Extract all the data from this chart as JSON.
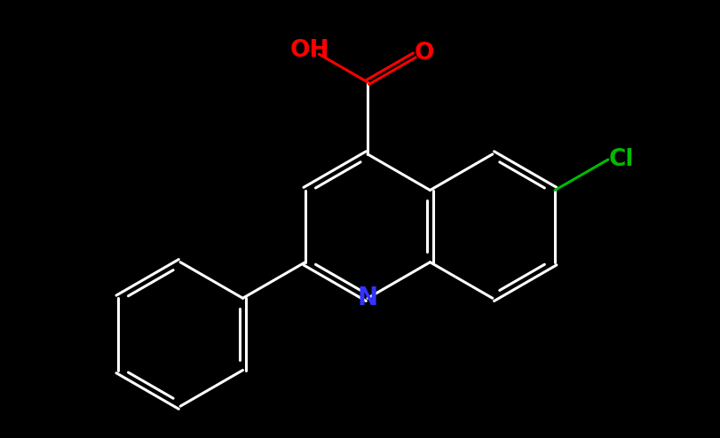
{
  "background": "#000000",
  "bond_color": "#ffffff",
  "N_color": "#3333ff",
  "O_color": "#ff0000",
  "Cl_color": "#00bb00",
  "bond_width": 2.2,
  "font_size_atom": 19,
  "figsize": [
    8.12,
    4.94
  ],
  "dpi": 100,
  "xlim": [
    -4.8,
    5.2
  ],
  "ylim": [
    -2.8,
    3.2
  ]
}
